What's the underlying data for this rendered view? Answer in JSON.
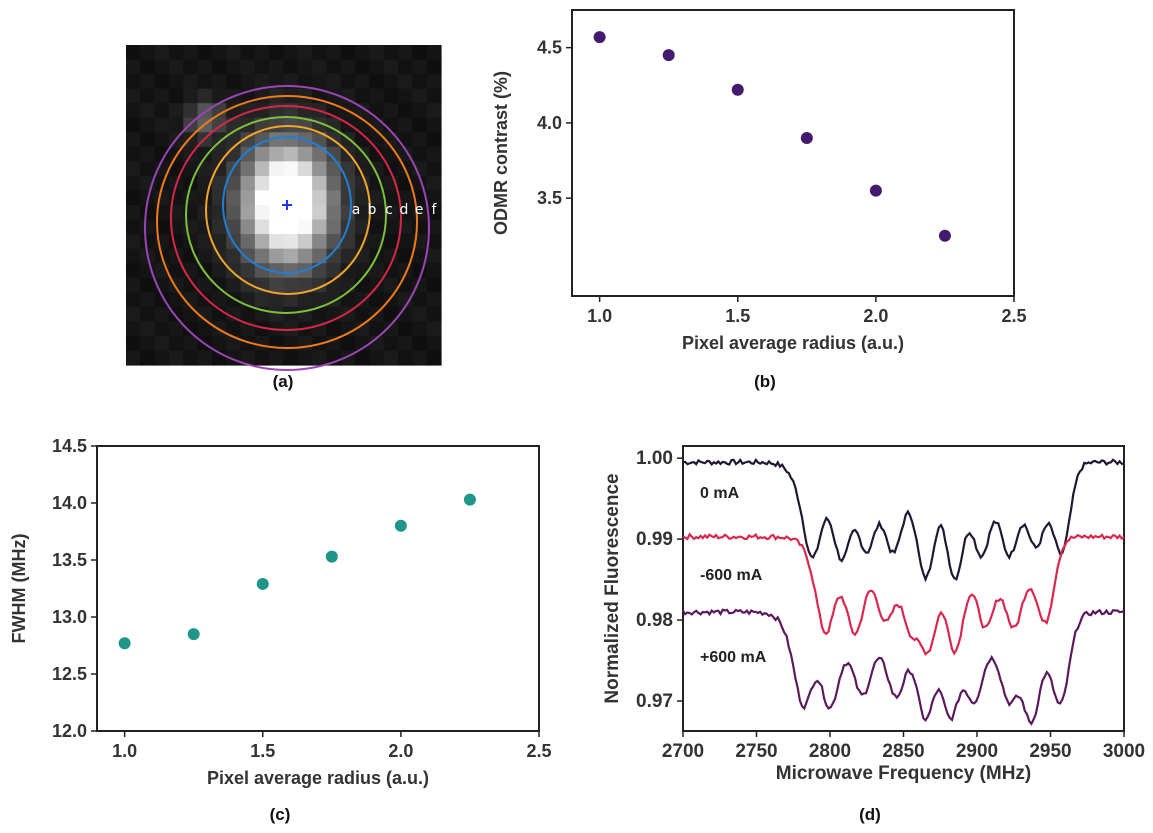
{
  "panels": {
    "a": {
      "label": "(a)"
    },
    "b": {
      "label": "(b)"
    },
    "c": {
      "label": "(c)"
    },
    "d": {
      "label": "(d)"
    }
  },
  "image_a": {
    "ring_labels": [
      "a",
      "b",
      "c",
      "d",
      "e",
      "f"
    ],
    "ring_colors": [
      "#1f7fd6",
      "#f2a529",
      "#7fbf3a",
      "#d6264a",
      "#f07a1a",
      "#9b45b8"
    ],
    "center_marker_color": "#2233ff"
  },
  "chart_data": [
    {
      "id": "b",
      "type": "scatter",
      "xlabel": "Pixel average radius (a.u.)",
      "ylabel": "ODMR contrast (%)",
      "xlim": [
        0.9,
        2.5
      ],
      "ylim": [
        2.85,
        4.75
      ],
      "xticks": [
        "1.0",
        "1.5",
        "2.0",
        "2.5"
      ],
      "yticks": [
        "3.5",
        "4.0",
        "4.5"
      ],
      "color": "#441a6e",
      "x": [
        1.0,
        1.25,
        1.5,
        1.75,
        2.0,
        2.25
      ],
      "y": [
        4.57,
        4.45,
        4.22,
        3.9,
        3.55,
        3.25
      ]
    },
    {
      "id": "c",
      "type": "scatter",
      "xlabel": "Pixel average radius (a.u.)",
      "ylabel": "FWHM (MHz)",
      "xlim": [
        0.9,
        2.5
      ],
      "ylim": [
        12.0,
        14.5
      ],
      "xticks": [
        "1.0",
        "1.5",
        "2.0",
        "2.5"
      ],
      "yticks": [
        "12.0",
        "12.5",
        "13.0",
        "13.5",
        "14.0",
        "14.5"
      ],
      "color": "#20958a",
      "x": [
        1.0,
        1.25,
        1.5,
        1.75,
        2.0,
        2.25
      ],
      "y": [
        12.77,
        12.85,
        13.29,
        13.53,
        13.8,
        14.03
      ]
    },
    {
      "id": "d",
      "type": "line",
      "xlabel": "Microwave Frequency (MHz)",
      "ylabel": "Normalized Fluorescence",
      "xlim": [
        2700,
        3000
      ],
      "ylim": [
        0.9663,
        1.0015
      ],
      "xticks": [
        "2700",
        "2750",
        "2800",
        "2850",
        "2900",
        "2950",
        "3000"
      ],
      "yticks": [
        "0.97",
        "0.98",
        "0.99",
        "1.00"
      ],
      "dip_frequencies": [
        2787,
        2805,
        2822,
        2843,
        2865,
        2885,
        2905,
        2925,
        2945,
        2957
      ],
      "series": [
        {
          "name": "0 mA",
          "color": "#221733",
          "baseline": 0.9995,
          "dips": [
            [
              2788,
              0.9875
            ],
            [
              2808,
              0.9875
            ],
            [
              2825,
              0.9885
            ],
            [
              2843,
              0.9883
            ],
            [
              2865,
              0.9852
            ],
            [
              2885,
              0.9852
            ],
            [
              2903,
              0.988
            ],
            [
              2922,
              0.988
            ],
            [
              2940,
              0.989
            ],
            [
              2958,
              0.9868
            ]
          ],
          "peaks_between": 0.9955,
          "shoulder": [
            2775,
            2960
          ]
        },
        {
          "name": "-600 mA",
          "color": "#d9284f",
          "baseline": 0.9903,
          "dips": [
            [
              2797,
              0.9782
            ],
            [
              2817,
              0.9783
            ],
            [
              2838,
              0.9798
            ],
            [
              2855,
              0.979
            ],
            [
              2867,
              0.9768
            ],
            [
              2885,
              0.9762
            ],
            [
              2906,
              0.979
            ],
            [
              2925,
              0.979
            ],
            [
              2947,
              0.9783
            ]
          ],
          "peaks_between": 0.9858,
          "shoulder": [
            2785,
            2950
          ]
        },
        {
          "name": "+600 mA",
          "color": "#5b1a5e",
          "baseline": 0.981,
          "dips": [
            [
              2782,
              0.9692
            ],
            [
              2800,
              0.9692
            ],
            [
              2822,
              0.9707
            ],
            [
              2845,
              0.9705
            ],
            [
              2865,
              0.9678
            ],
            [
              2882,
              0.968
            ],
            [
              2898,
              0.97
            ],
            [
              2922,
              0.97
            ],
            [
              2937,
              0.9675
            ],
            [
              2957,
              0.9688
            ]
          ],
          "peaks_between": 0.9765,
          "shoulder": [
            2770,
            2963
          ]
        }
      ]
    }
  ]
}
